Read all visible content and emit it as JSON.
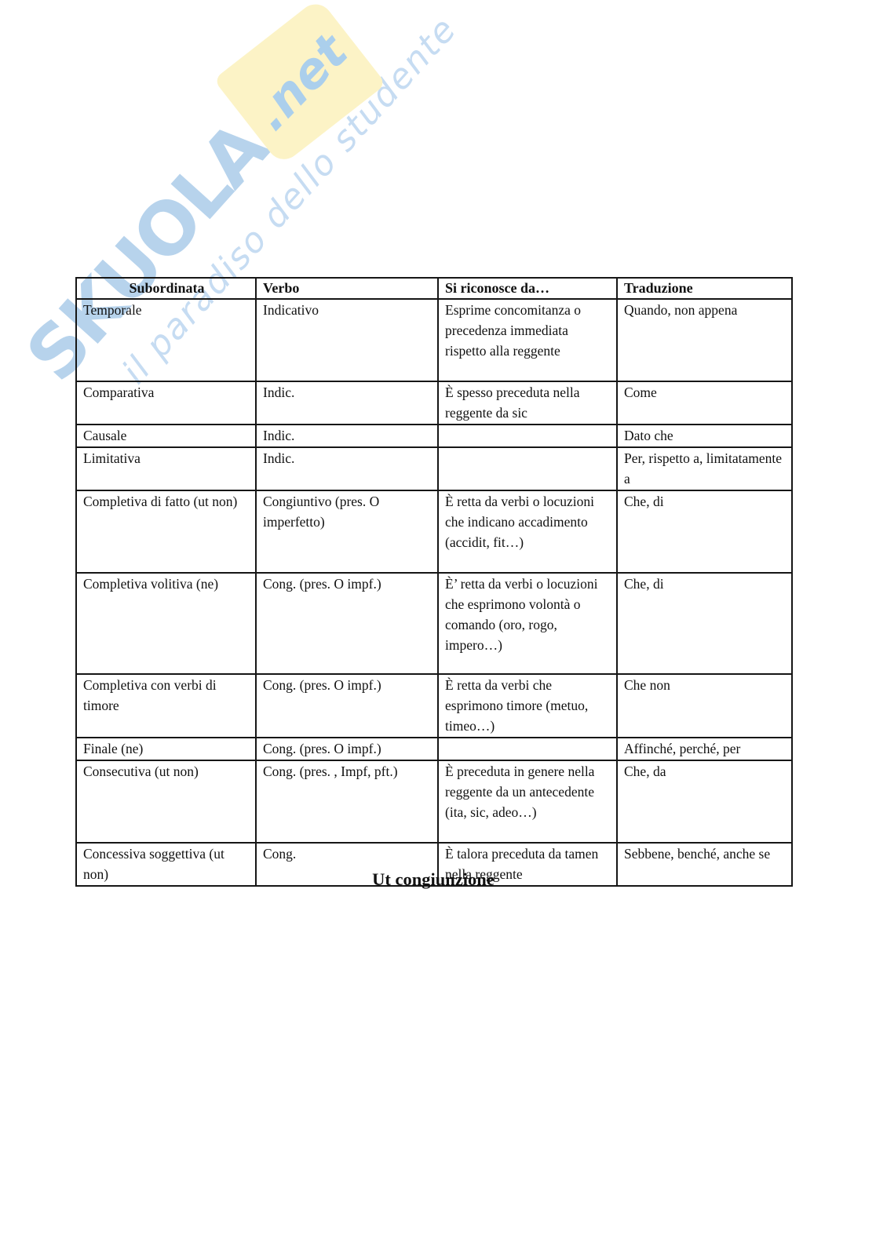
{
  "page": {
    "caption": "Ut congiunzione"
  },
  "watermark": {
    "brand": "SKUOLA",
    "tld": ".net",
    "tagline": "il paradiso dello studente",
    "colors": {
      "brand_blue": "#b7d3ec",
      "tld_blue": "#abcfec",
      "tagline_blue": "#c6dcf2",
      "flag_yellow": "#fcf3c6"
    }
  },
  "table": {
    "headers": [
      "Subordinata",
      "Verbo",
      "Si riconosce da…",
      "Traduzione"
    ],
    "rows": [
      [
        "Temporale",
        "Indicativo",
        "Esprime concomitanza o precedenza immediata rispetto alla reggente",
        "Quando, non appena"
      ],
      [
        "Comparativa",
        "Indic.",
        "È spesso preceduta nella reggente da sic",
        "Come"
      ],
      [
        "Causale",
        "Indic.",
        "",
        "Dato che"
      ],
      [
        "Limitativa",
        "Indic.",
        "",
        "Per, rispetto a, limitatamente a"
      ],
      [
        "Completiva di fatto (ut non)",
        "Congiuntivo (pres. O imperfetto)",
        "È retta da verbi o locuzioni che indicano accadimento (accidit, fit…)",
        "Che, di"
      ],
      [
        "Completiva volitiva (ne)",
        "Cong. (pres. O impf.)",
        "È’ retta da verbi o locuzioni che esprimono volontà o comando (oro, rogo, impero…)",
        "Che, di"
      ],
      [
        "Completiva con verbi di timore",
        "Cong. (pres. O impf.)",
        "È retta da verbi che esprimono timore (metuo, timeo…)",
        "Che non"
      ],
      [
        "Finale (ne)",
        "Cong. (pres. O impf.)",
        "",
        "Affinché, perché, per"
      ],
      [
        "Consecutiva (ut non)",
        "Cong. (pres. , Impf, pft.)",
        "È preceduta in genere nella reggente da un antecedente (ita, sic, adeo…)",
        "Che, da"
      ],
      [
        "Concessiva soggettiva (ut non)",
        "Cong.",
        "È talora preceduta da tamen nella reggente",
        "Sebbene, benché, anche se"
      ]
    ]
  }
}
